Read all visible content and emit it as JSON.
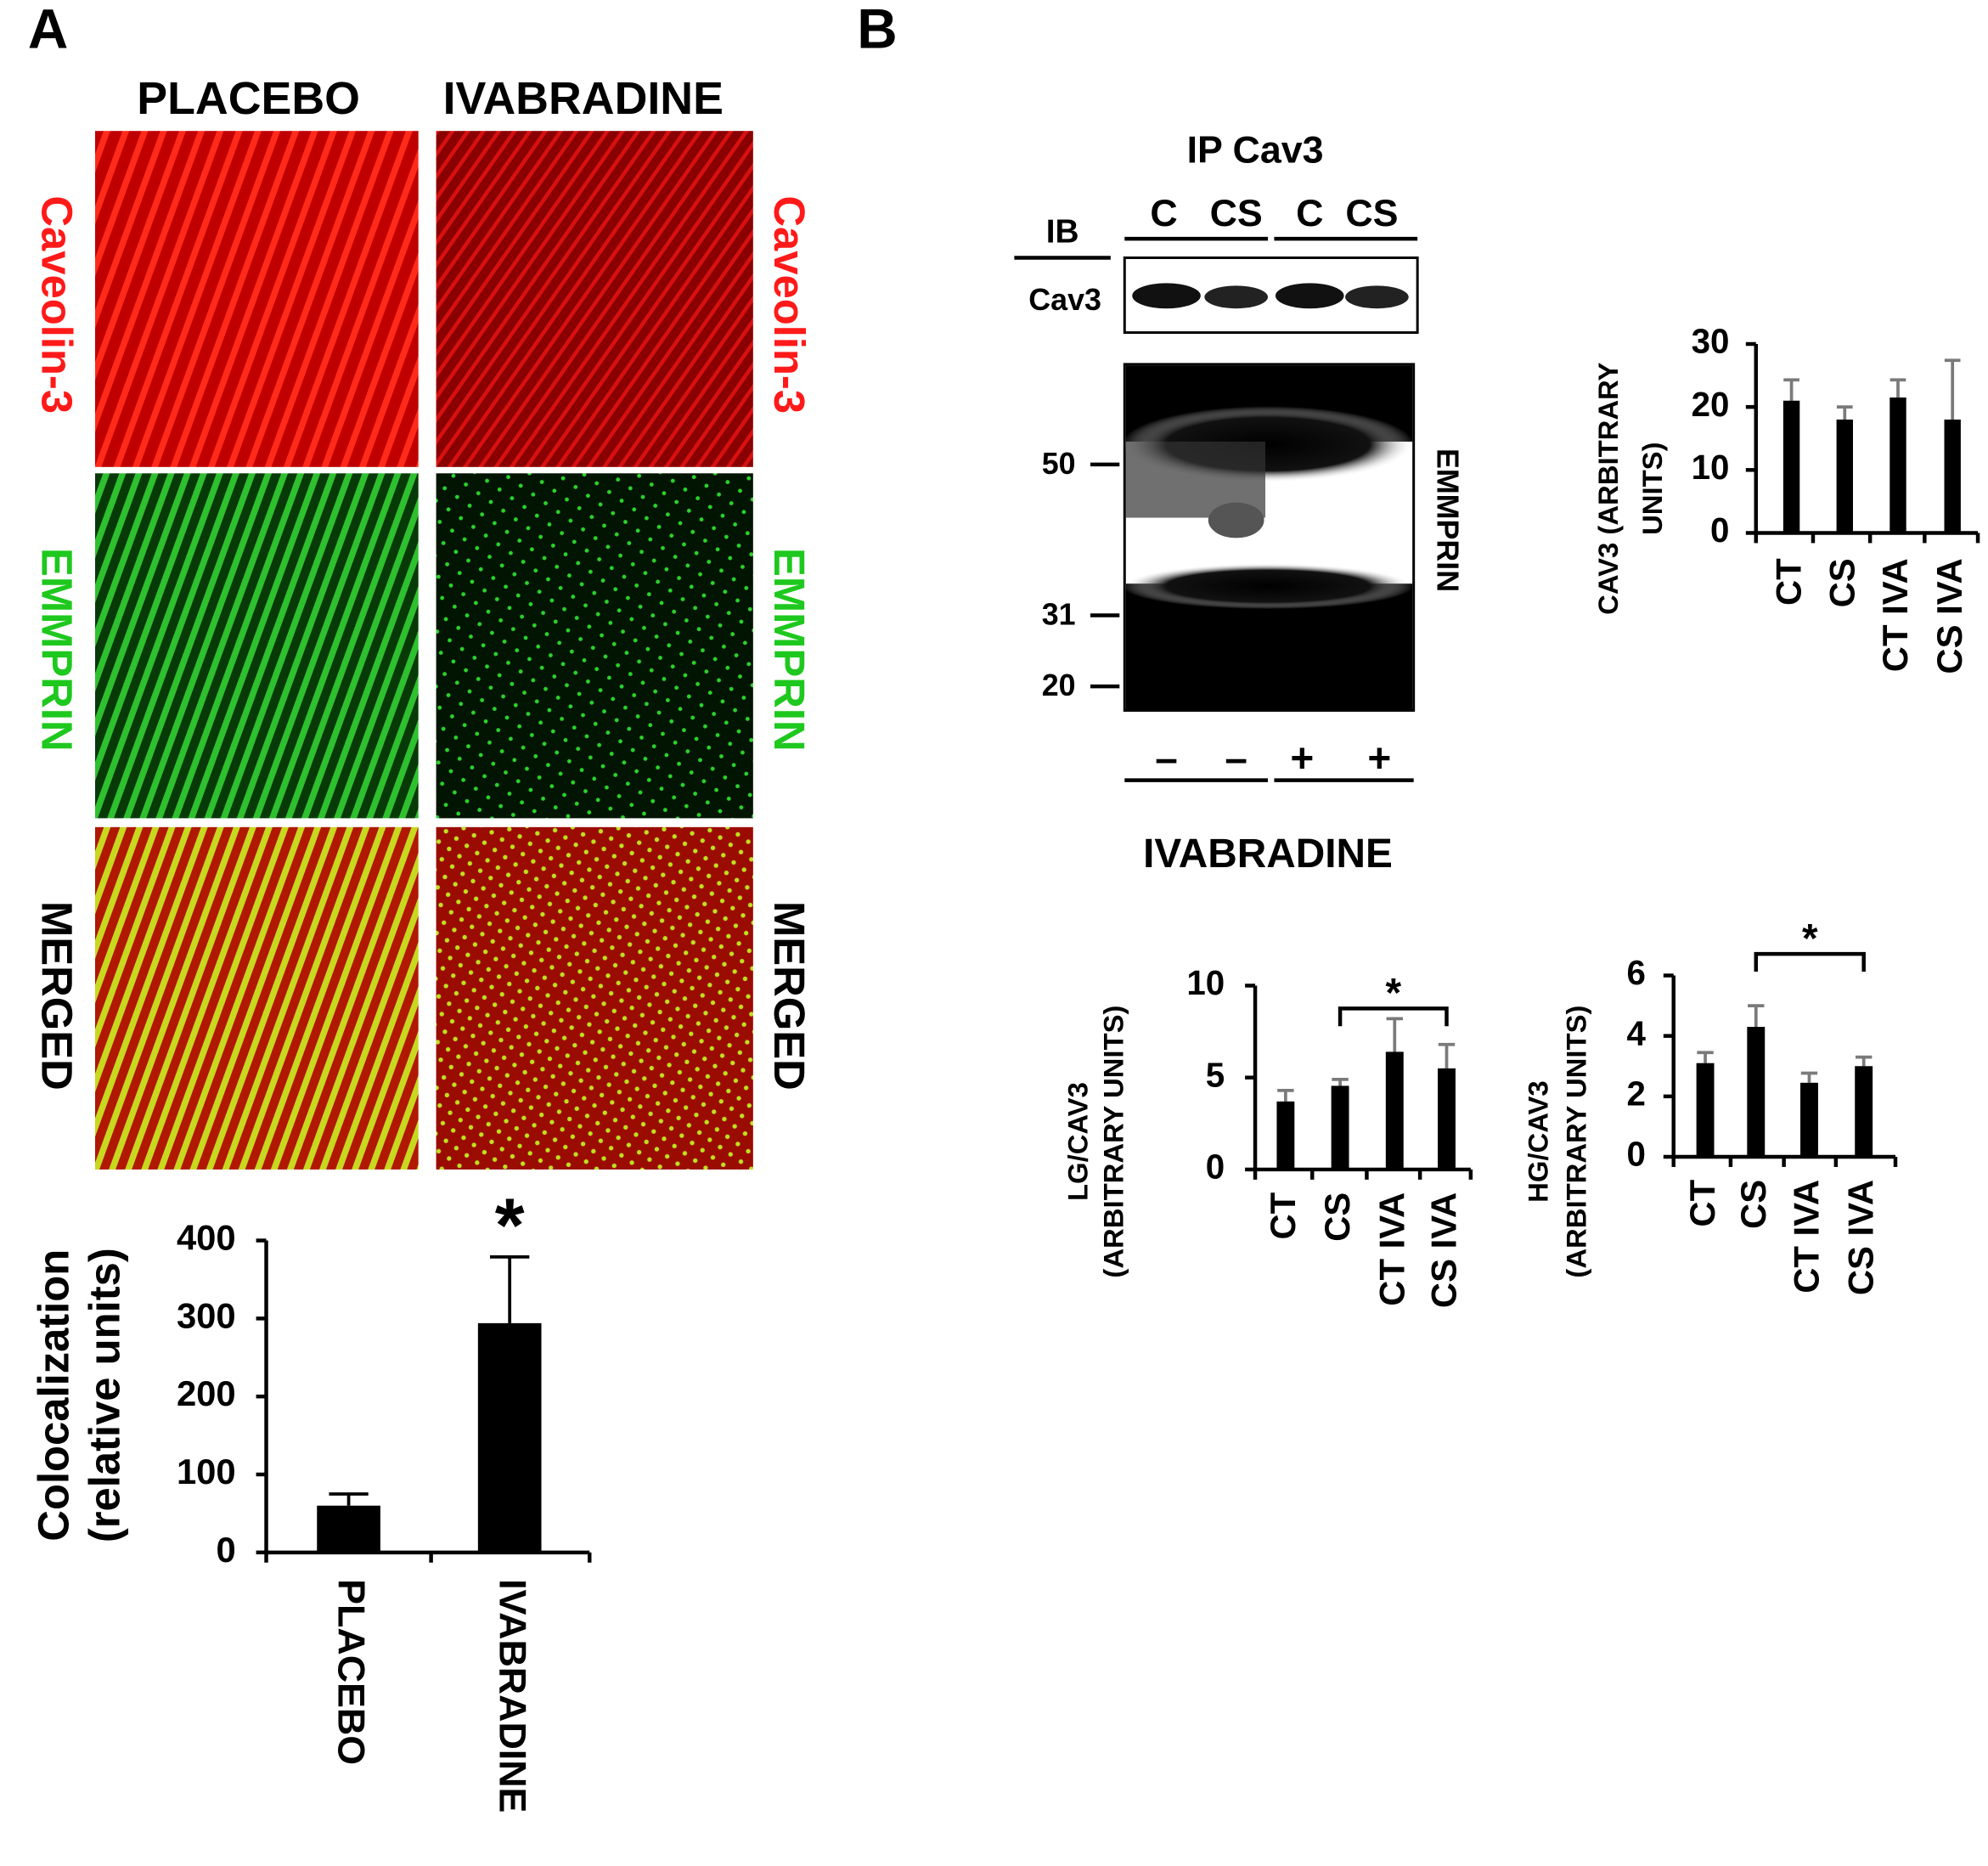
{
  "panel_labels": [
    "A",
    "B"
  ],
  "micrographs": {
    "columns": [
      "PLACEBO",
      "IVABRADINE"
    ],
    "rows": [
      "Caveolin-3",
      "EMMPRIN",
      "MERGED"
    ]
  },
  "blot": {
    "title": "IP Cav3",
    "ib_label": "IB",
    "band_label": "Cav3",
    "lanes": [
      "C",
      "CS",
      "C",
      "CS"
    ],
    "markers": [
      "50",
      "31",
      "20"
    ],
    "target": "EMMPRIN",
    "treatment_signs": [
      "–",
      "–",
      "+",
      "+"
    ],
    "treatment": "IVABRADINE"
  },
  "chart_data": [
    {
      "type": "bar",
      "ylabel": [
        "Colocalization",
        "(relative units)"
      ],
      "categories": [
        "PLACEBO",
        "IVABRADINE"
      ],
      "values": [
        60,
        294
      ],
      "errors": [
        15,
        85
      ],
      "ylim": [
        0,
        400
      ],
      "yticks": [
        0,
        100,
        200,
        300,
        400
      ],
      "color": "#000000",
      "error_color": "#000000",
      "annotation": "*"
    },
    {
      "type": "bar",
      "ylabel": [
        "CAV3 (ARBITRARY",
        "UNITS)"
      ],
      "categories": [
        "CT",
        "CS",
        "CT IVA",
        "CS IVA"
      ],
      "values": [
        21,
        18,
        21.5,
        18
      ],
      "errors": [
        3.3,
        2,
        2.8,
        9.4
      ],
      "ylim": [
        0,
        30
      ],
      "yticks": [
        0,
        10,
        20,
        30
      ],
      "color": "#000000",
      "error_color": "#7a7a7a"
    },
    {
      "type": "bar",
      "ylabel": [
        "LG/CAV3",
        "(ARBITRARY UNITS)"
      ],
      "categories": [
        "CT",
        "CS",
        "CT IVA",
        "CS IVA"
      ],
      "values": [
        3.7,
        4.55,
        6.4,
        5.5
      ],
      "errors": [
        0.6,
        0.35,
        1.8,
        1.3
      ],
      "ylim": [
        0,
        10
      ],
      "yticks": [
        0,
        5,
        10
      ],
      "color": "#000000",
      "error_color": "#7a7a7a",
      "annotation": "*"
    },
    {
      "type": "bar",
      "ylabel": [
        "HG/CAV3",
        "(ARBITRARY UNITS)"
      ],
      "categories": [
        "CT",
        "CS",
        "CT IVA",
        "CS IVA"
      ],
      "values": [
        3.1,
        4.3,
        2.45,
        3.0
      ],
      "errors": [
        0.35,
        0.7,
        0.32,
        0.3
      ],
      "ylim": [
        0,
        6
      ],
      "yticks": [
        0,
        2,
        4,
        6
      ],
      "color": "#000000",
      "error_color": "#7a7a7a",
      "annotation": "*"
    }
  ]
}
